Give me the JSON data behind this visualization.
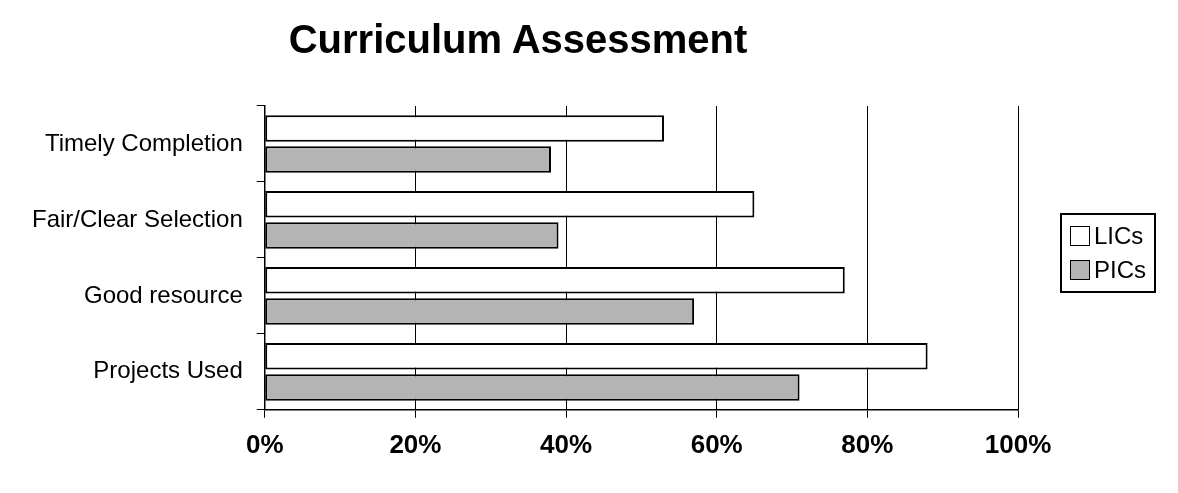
{
  "chart_data": {
    "type": "bar",
    "orientation": "horizontal",
    "title": "Curriculum Assessment",
    "categories": [
      "Timely Completion",
      "Fair/Clear Selection",
      "Good resource",
      "Projects Used"
    ],
    "series": [
      {
        "name": "LICs",
        "color": "#ffffff",
        "values": [
          53,
          65,
          77,
          88
        ]
      },
      {
        "name": "PICs",
        "color": "#b4b4b4",
        "values": [
          38,
          39,
          57,
          71
        ]
      }
    ],
    "xlim": [
      0,
      100
    ],
    "xticks": [
      {
        "value": 0,
        "label": "0%"
      },
      {
        "value": 20,
        "label": "20%"
      },
      {
        "value": 40,
        "label": "40%"
      },
      {
        "value": 60,
        "label": "60%"
      },
      {
        "value": 80,
        "label": "80%"
      },
      {
        "value": 100,
        "label": "100%"
      }
    ],
    "grid": "x",
    "legend": "right"
  }
}
